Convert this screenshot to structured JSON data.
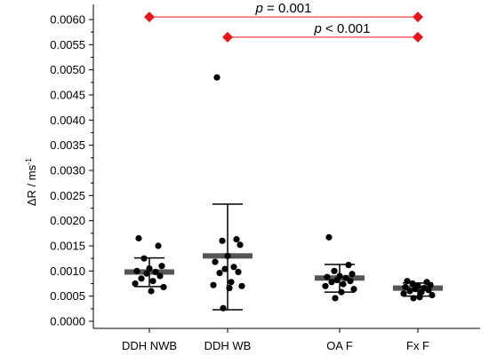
{
  "chart_data": {
    "type": "scatter",
    "ylabel": "ΔR / ms",
    "ylabel_superscript": "-1",
    "ylim": [
      0,
      0.0062
    ],
    "yticks": [
      "0.0000",
      "0.0005",
      "0.0010",
      "0.0015",
      "0.0020",
      "0.0025",
      "0.0030",
      "0.0035",
      "0.0040",
      "0.0045",
      "0.0050",
      "0.0055",
      "0.0060"
    ],
    "ytick_values": [
      0,
      0.0005,
      0.001,
      0.0015,
      0.002,
      0.0025,
      0.003,
      0.0035,
      0.004,
      0.0045,
      0.005,
      0.0055,
      0.006
    ],
    "categories": [
      "DDH NWB",
      "DDH WB",
      "OA F",
      "Fx F"
    ],
    "groups": [
      {
        "category": "DDH NWB",
        "mean": 0.00098,
        "err_low": 0.00069,
        "err_high": 0.00126,
        "points": [
          0.00165,
          0.0015,
          0.00125,
          0.0011,
          0.00105,
          0.001,
          0.00098,
          0.00095,
          0.0009,
          0.00085,
          0.0008,
          0.00075,
          0.00068,
          0.0006
        ]
      },
      {
        "category": "DDH WB",
        "mean": 0.0013,
        "err_low": 0.00023,
        "err_high": 0.00233,
        "points": [
          0.00485,
          0.00163,
          0.0016,
          0.00152,
          0.0013,
          0.00118,
          0.00108,
          0.00104,
          0.00098,
          0.00096,
          0.00078,
          0.00072,
          0.0007,
          0.00066,
          0.00026
        ]
      },
      {
        "category": "OA F",
        "mean": 0.00086,
        "err_low": 0.00058,
        "err_high": 0.00113,
        "points": [
          0.00167,
          0.00112,
          0.001,
          0.00094,
          0.0009,
          0.00088,
          0.00086,
          0.00082,
          0.0008,
          0.00078,
          0.00074,
          0.0007,
          0.00064,
          0.00058,
          0.00046
        ]
      },
      {
        "category": "Fx F",
        "mean": 0.00066,
        "err_low": 0.0005,
        "err_high": 0.00076,
        "points": [
          0.0008,
          0.00078,
          0.00075,
          0.00072,
          0.0007,
          0.00068,
          0.00066,
          0.00064,
          0.00062,
          0.0006,
          0.00058,
          0.00055,
          0.00052,
          0.00048,
          0.00046
        ]
      }
    ],
    "significance": [
      {
        "from": "DDH NWB",
        "to": "Fx F",
        "y": 0.00605,
        "label_italic": "p",
        "label_rest": " = 0.001"
      },
      {
        "from": "DDH WB",
        "to": "Fx F",
        "y": 0.00565,
        "label_italic": "p",
        "label_rest": " < 0.001"
      }
    ],
    "colors": {
      "points": "#000000",
      "mean_bar": "#555555",
      "significance": "#e8151b",
      "axis": "#000000"
    }
  }
}
